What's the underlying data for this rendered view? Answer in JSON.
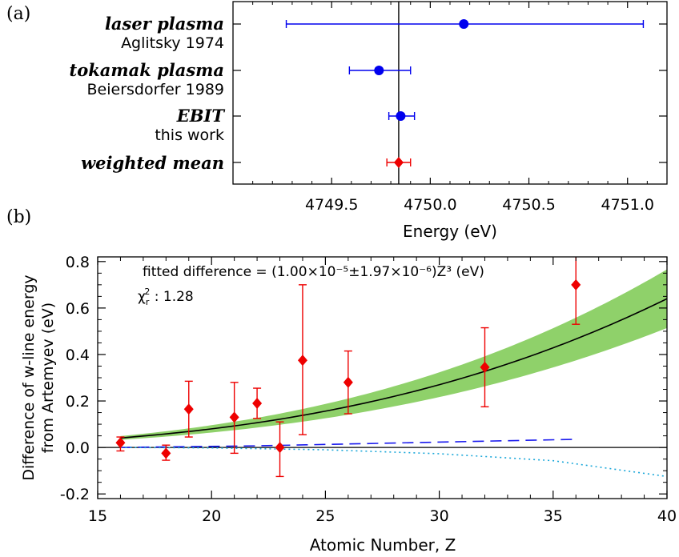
{
  "chart_data": [
    {
      "panel_label": "(a)",
      "type": "scatter",
      "xlabel": "Energy (eV)",
      "xlim": [
        4749.0,
        4751.2
      ],
      "xticks": [
        4749.5,
        4750.0,
        4750.5,
        4751.0
      ],
      "xtick_labels": [
        "4749.5",
        "4750.0",
        "4750.5",
        "4751.0"
      ],
      "reference_line_x": 4749.84,
      "rows": [
        {
          "label_main": "laser plasma",
          "label_sub": "Aglitsky 1974",
          "value": 4750.17,
          "err_low": 4749.27,
          "err_high": 4751.08,
          "color": "#0000ee",
          "marker": "circle"
        },
        {
          "label_main": "tokamak plasma",
          "label_sub": "Beiersdorfer 1989",
          "value": 4749.74,
          "err_low": 4749.59,
          "err_high": 4749.9,
          "color": "#0000ee",
          "marker": "circle"
        },
        {
          "label_main": "EBIT",
          "label_sub": "this work",
          "value": 4749.85,
          "err_low": 4749.79,
          "err_high": 4749.92,
          "color": "#0000ee",
          "marker": "circle"
        },
        {
          "label_main": "weighted mean",
          "label_sub": "",
          "value": 4749.84,
          "err_low": 4749.78,
          "err_high": 4749.9,
          "color": "#ee0000",
          "marker": "diamond"
        }
      ]
    },
    {
      "panel_label": "(b)",
      "type": "scatter",
      "xlabel": "Atomic Number, Z",
      "ylabel_line1": "Difference of w-line energy",
      "ylabel_line2": "from Artemyev (eV)",
      "xlim": [
        15,
        40
      ],
      "ylim": [
        -0.22,
        0.82
      ],
      "xticks": [
        15,
        20,
        25,
        30,
        35,
        40
      ],
      "yticks": [
        -0.2,
        0.0,
        0.2,
        0.4,
        0.6,
        0.8
      ],
      "ytick_labels": [
        "-0.2",
        "0.0",
        "0.2",
        "0.4",
        "0.6",
        "0.8"
      ],
      "annotation_fit": "fitted difference = (1.00×10⁻⁵±1.97×10⁻⁶)Z³ (eV)",
      "annotation_chi_symbol": "χ",
      "annotation_chi_sub": "r",
      "annotation_chi_sup": "2",
      "annotation_chi_value": " : 1.28",
      "fit": {
        "coef": 1e-05,
        "coef_err": 1.97e-06,
        "power": 3,
        "z_start": 16,
        "z_end": 40
      },
      "points": [
        {
          "z": 16,
          "y": 0.02,
          "err_low": -0.015,
          "err_high": 0.045
        },
        {
          "z": 18,
          "y": -0.025,
          "err_low": -0.055,
          "err_high": 0.01
        },
        {
          "z": 19,
          "y": 0.165,
          "err_low": 0.045,
          "err_high": 0.285
        },
        {
          "z": 21,
          "y": 0.13,
          "err_low": -0.025,
          "err_high": 0.28
        },
        {
          "z": 22,
          "y": 0.19,
          "err_low": 0.125,
          "err_high": 0.255
        },
        {
          "z": 23,
          "y": 0.0,
          "err_low": -0.125,
          "err_high": 0.11
        },
        {
          "z": 24,
          "y": 0.375,
          "err_low": 0.055,
          "err_high": 0.7
        },
        {
          "z": 26,
          "y": 0.28,
          "err_low": 0.145,
          "err_high": 0.415
        },
        {
          "z": 32,
          "y": 0.345,
          "err_low": 0.175,
          "err_high": 0.515
        },
        {
          "z": 36,
          "y": 0.7,
          "err_low": 0.53,
          "err_high": 0.84
        }
      ],
      "dashed_curve": {
        "x": [
          16,
          22,
          36
        ],
        "y": [
          0.0,
          0.007,
          0.035
        ],
        "color": "#1a1aee"
      },
      "dotted_curve": {
        "x": [
          16,
          20,
          25,
          30,
          35,
          40
        ],
        "y": [
          0.0,
          -0.002,
          -0.01,
          -0.027,
          -0.057,
          -0.125
        ],
        "color": "#1aa7d9"
      },
      "colors": {
        "points": "#ee0000",
        "band": "#8fd16a",
        "fit_line": "#000000"
      }
    }
  ]
}
